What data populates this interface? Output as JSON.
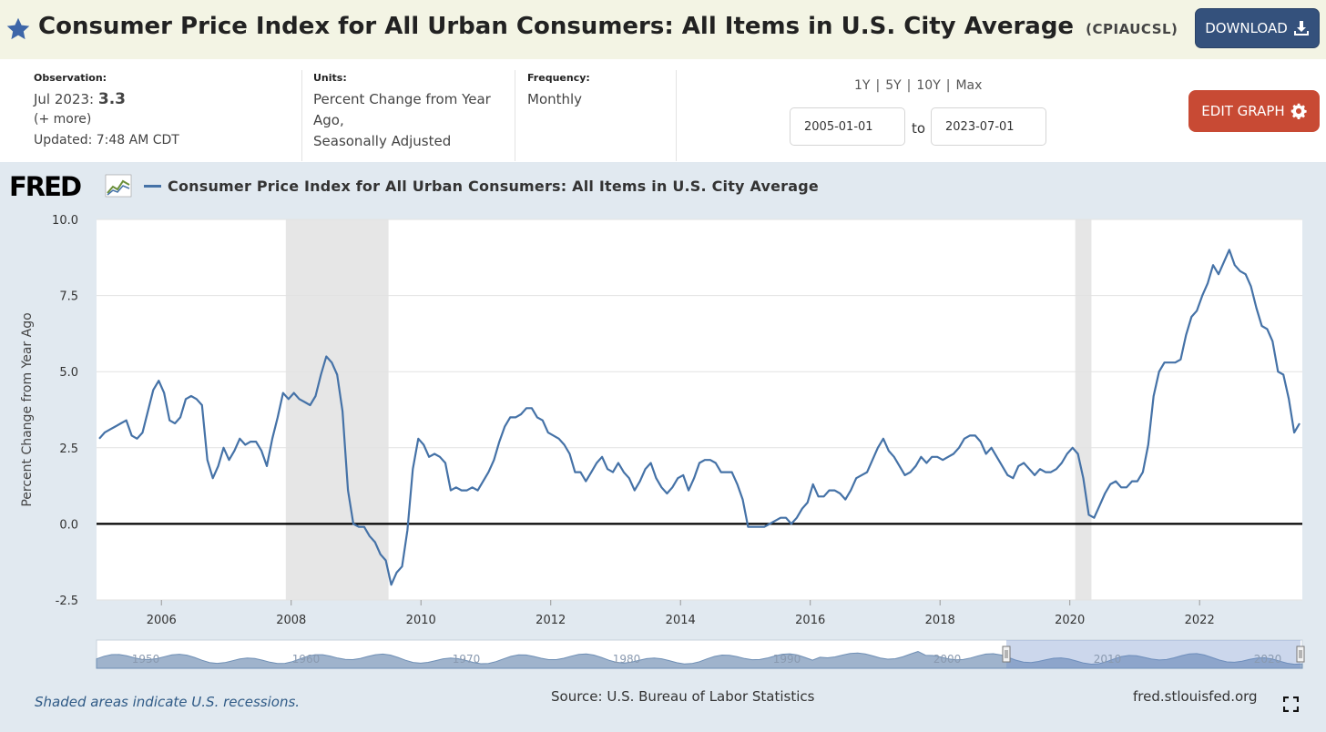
{
  "header": {
    "title": "Consumer Price Index for All Urban Consumers: All Items in U.S. City Average",
    "series_id": "(CPIAUCSL)",
    "download_label": "DOWNLOAD",
    "icons": [
      "star-icon",
      "download-icon"
    ]
  },
  "info": {
    "observation_label": "Observation:",
    "observation_date": "Jul 2023:",
    "observation_value": "3.3",
    "more_label": "(+ more)",
    "updated": "Updated: 7:48 AM CDT",
    "units_label": "Units:",
    "units_line1": "Percent Change from Year",
    "units_line2": "Ago,",
    "units_line3": "Seasonally Adjusted",
    "frequency_label": "Frequency:",
    "frequency_value": "Monthly",
    "range_1y": "1Y",
    "range_5y": "5Y",
    "range_10y": "10Y",
    "range_max": "Max",
    "range_sep": "|",
    "start_date": "2005-01-01",
    "to_label": "to",
    "end_date": "2023-07-01",
    "edit_label": "EDIT GRAPH"
  },
  "colors": {
    "series": "#4572a7",
    "edit_button": "#c84a34",
    "download_button": "#34517c",
    "recession": "#e6e6e6",
    "chart_background": "#e1e9f0"
  },
  "footer": {
    "note": "Shaded areas indicate U.S. recessions.",
    "source": "Source: U.S. Bureau of Labor Statistics",
    "site": "fred.stlouisfed.org"
  },
  "chart_data": {
    "type": "line",
    "title": "Consumer Price Index for All Urban Consumers: All Items in U.S. City Average",
    "ylabel": "Percent Change from Year Ago",
    "xlabel": "",
    "ylim": [
      -2.5,
      10.0
    ],
    "xlim": [
      "2005-01",
      "2023-07"
    ],
    "yticks": [
      "10.0",
      "7.5",
      "5.0",
      "2.5",
      "0.0",
      "-2.5"
    ],
    "xticks": [
      "2006",
      "2008",
      "2010",
      "2012",
      "2014",
      "2016",
      "2018",
      "2020",
      "2022"
    ],
    "grid": true,
    "recessions": [
      [
        "2007-12",
        "2009-06"
      ],
      [
        "2020-02",
        "2020-04"
      ]
    ],
    "navigator_labels": [
      "1950",
      "1960",
      "1970",
      "1980",
      "1990",
      "2000",
      "2010",
      "2020"
    ],
    "series": [
      {
        "name": "Consumer Price Index for All Urban Consumers: All Items in U.S. City Average",
        "start": "2005-01",
        "frequency": "monthly",
        "values": [
          2.8,
          3.0,
          3.1,
          3.2,
          3.3,
          3.4,
          2.9,
          2.8,
          3.0,
          3.7,
          4.4,
          4.7,
          4.3,
          3.4,
          3.3,
          3.5,
          4.1,
          4.2,
          4.1,
          3.9,
          2.1,
          1.5,
          1.9,
          2.5,
          2.1,
          2.4,
          2.8,
          2.6,
          2.7,
          2.7,
          2.4,
          1.9,
          2.8,
          3.5,
          4.3,
          4.1,
          4.3,
          4.1,
          4.0,
          3.9,
          4.2,
          4.9,
          5.5,
          5.3,
          4.9,
          3.7,
          1.1,
          0.0,
          -0.1,
          -0.1,
          -0.4,
          -0.6,
          -1.0,
          -1.2,
          -2.0,
          -1.6,
          -1.4,
          -0.2,
          1.8,
          2.8,
          2.6,
          2.2,
          2.3,
          2.2,
          2.0,
          1.1,
          1.2,
          1.1,
          1.1,
          1.2,
          1.1,
          1.4,
          1.7,
          2.1,
          2.7,
          3.2,
          3.5,
          3.5,
          3.6,
          3.8,
          3.8,
          3.5,
          3.4,
          3.0,
          2.9,
          2.8,
          2.6,
          2.3,
          1.7,
          1.7,
          1.4,
          1.7,
          2.0,
          2.2,
          1.8,
          1.7,
          2.0,
          1.7,
          1.5,
          1.1,
          1.4,
          1.8,
          2.0,
          1.5,
          1.2,
          1.0,
          1.2,
          1.5,
          1.6,
          1.1,
          1.5,
          2.0,
          2.1,
          2.1,
          2.0,
          1.7,
          1.7,
          1.7,
          1.3,
          0.8,
          -0.1,
          -0.1,
          -0.1,
          -0.1,
          0.0,
          0.1,
          0.2,
          0.2,
          0.0,
          0.2,
          0.5,
          0.7,
          1.3,
          0.9,
          0.9,
          1.1,
          1.1,
          1.0,
          0.8,
          1.1,
          1.5,
          1.6,
          1.7,
          2.1,
          2.5,
          2.8,
          2.4,
          2.2,
          1.9,
          1.6,
          1.7,
          1.9,
          2.2,
          2.0,
          2.2,
          2.2,
          2.1,
          2.2,
          2.3,
          2.5,
          2.8,
          2.9,
          2.9,
          2.7,
          2.3,
          2.5,
          2.2,
          1.9,
          1.6,
          1.5,
          1.9,
          2.0,
          1.8,
          1.6,
          1.8,
          1.7,
          1.7,
          1.8,
          2.0,
          2.3,
          2.5,
          2.3,
          1.5,
          0.3,
          0.2,
          0.6,
          1.0,
          1.3,
          1.4,
          1.2,
          1.2,
          1.4,
          1.4,
          1.7,
          2.6,
          4.2,
          5.0,
          5.3,
          5.3,
          5.3,
          5.4,
          6.2,
          6.8,
          7.0,
          7.5,
          7.9,
          8.5,
          8.2,
          8.6,
          9.0,
          8.5,
          8.3,
          8.2,
          7.8,
          7.1,
          6.5,
          6.4,
          6.0,
          5.0,
          4.9,
          4.1,
          3.0,
          3.3
        ]
      }
    ]
  }
}
